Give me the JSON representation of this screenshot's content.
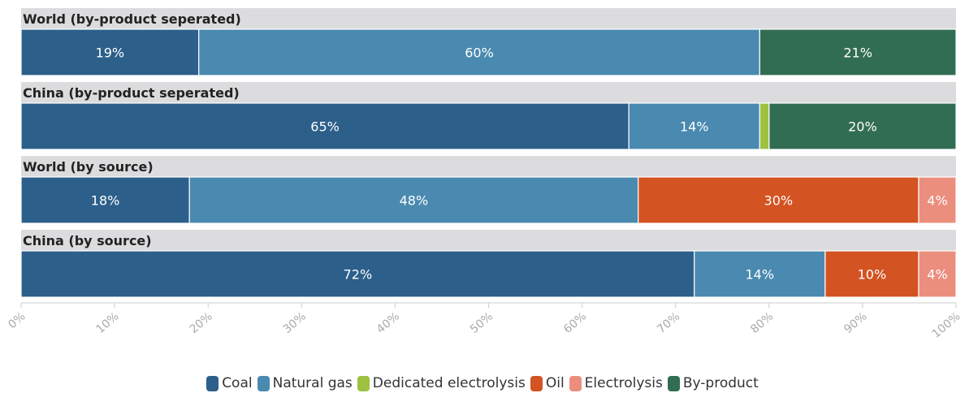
{
  "chart_data": {
    "type": "bar",
    "orientation": "horizontal",
    "stacked": true,
    "categories": [
      "World (by-product seperated)",
      "China (by-product seperated)",
      "World (by source)",
      "China (by source)"
    ],
    "series": [
      {
        "name": "Coal",
        "color": "#2c5f8a",
        "values": [
          19,
          65,
          18,
          72
        ],
        "labels": [
          "19%",
          "65%",
          "18%",
          "72%"
        ]
      },
      {
        "name": "Natural gas",
        "color": "#4a89b0",
        "values": [
          60,
          14,
          48,
          14
        ],
        "labels": [
          "60%",
          "14%",
          "48%",
          "14%"
        ]
      },
      {
        "name": "Dedicated electrolysis",
        "color": "#9cc23f",
        "values": [
          0,
          1,
          0,
          0
        ],
        "labels": [
          "",
          "",
          "",
          ""
        ]
      },
      {
        "name": "Oil",
        "color": "#d35322",
        "values": [
          0,
          0,
          30,
          10
        ],
        "labels": [
          "",
          "",
          "30%",
          "10%"
        ]
      },
      {
        "name": "Electrolysis",
        "color": "#ec8e7e",
        "values": [
          0,
          0,
          4,
          4
        ],
        "labels": [
          "",
          "",
          "4%",
          "4%"
        ]
      },
      {
        "name": "By-product",
        "color": "#316d53",
        "values": [
          21,
          20,
          0,
          0
        ],
        "labels": [
          "21%",
          "20%",
          "",
          ""
        ]
      }
    ],
    "xlim": [
      0,
      100
    ],
    "x_ticks": [
      "0%",
      "10%",
      "20%",
      "30%",
      "40%",
      "50%",
      "60%",
      "70%",
      "80%",
      "90%",
      "100%"
    ],
    "legend_position": "bottom",
    "grid": false
  }
}
